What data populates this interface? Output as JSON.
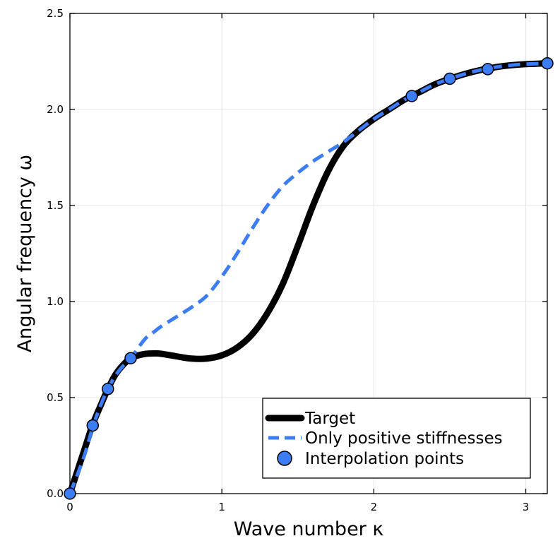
{
  "chart_data": {
    "type": "line",
    "title": "",
    "xlabel": "Wave number κ",
    "ylabel": "Angular frequency ω",
    "xlim": [
      0,
      3.14159
    ],
    "ylim": [
      0,
      2.5
    ],
    "x_ticks": [
      0,
      1,
      2,
      3
    ],
    "x_tick_labels": [
      "0",
      "1",
      "2",
      "3"
    ],
    "y_ticks": [
      0,
      0.5,
      1.0,
      1.5,
      2.0,
      2.5
    ],
    "y_tick_labels": [
      "0.0",
      "0.5",
      "1.0",
      "1.5",
      "2.0",
      "2.5"
    ],
    "grid": true,
    "legend_position": "bottom-right",
    "series": [
      {
        "name": "Target",
        "style": "solid-thick",
        "color": "#000000",
        "x": [
          0,
          0.05,
          0.1,
          0.15,
          0.2,
          0.25,
          0.3,
          0.35,
          0.4,
          0.45,
          0.5,
          0.55,
          0.6,
          0.7,
          0.8,
          0.9,
          1.0,
          1.1,
          1.2,
          1.3,
          1.4,
          1.5,
          1.6,
          1.7,
          1.8,
          1.9,
          2.0,
          2.1,
          2.2,
          2.3,
          2.4,
          2.5,
          2.6,
          2.7,
          2.8,
          2.9,
          3.0,
          3.14159
        ],
        "y": [
          0,
          0.12,
          0.24,
          0.36,
          0.455,
          0.545,
          0.62,
          0.67,
          0.705,
          0.72,
          0.728,
          0.73,
          0.728,
          0.715,
          0.703,
          0.703,
          0.72,
          0.76,
          0.83,
          0.94,
          1.09,
          1.29,
          1.5,
          1.68,
          1.81,
          1.89,
          1.95,
          2.0,
          2.05,
          2.09,
          2.13,
          2.16,
          2.185,
          2.205,
          2.22,
          2.23,
          2.236,
          2.24
        ]
      },
      {
        "name": "Only positive stiffnesses",
        "style": "dashed",
        "color": "#3c7cf5",
        "x": [
          0,
          0.05,
          0.1,
          0.15,
          0.2,
          0.25,
          0.3,
          0.35,
          0.4,
          0.45,
          0.5,
          0.55,
          0.6,
          0.7,
          0.8,
          0.9,
          1.0,
          1.1,
          1.2,
          1.3,
          1.4,
          1.5,
          1.6,
          1.7,
          1.8,
          1.9,
          2.0,
          2.1,
          2.2,
          2.3,
          2.4,
          2.5,
          2.6,
          2.7,
          2.8,
          2.9,
          3.0,
          3.14159
        ],
        "y": [
          0,
          0.1,
          0.21,
          0.345,
          0.455,
          0.545,
          0.615,
          0.665,
          0.705,
          0.76,
          0.81,
          0.84,
          0.87,
          0.92,
          0.97,
          1.03,
          1.13,
          1.25,
          1.38,
          1.5,
          1.6,
          1.67,
          1.73,
          1.78,
          1.83,
          1.89,
          1.95,
          2.0,
          2.05,
          2.09,
          2.13,
          2.16,
          2.185,
          2.205,
          2.22,
          2.23,
          2.236,
          2.24
        ]
      }
    ],
    "interpolation_points": {
      "name": "Interpolation points",
      "color": "#3c7cf5",
      "x": [
        0,
        0.15,
        0.25,
        0.4,
        2.25,
        2.5,
        2.75,
        3.14159
      ],
      "y": [
        0,
        0.355,
        0.545,
        0.705,
        2.07,
        2.16,
        2.21,
        2.24
      ]
    }
  }
}
